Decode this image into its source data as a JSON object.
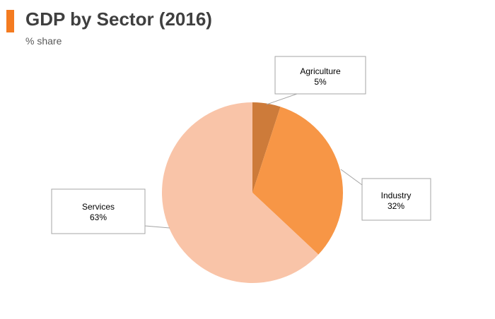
{
  "header": {
    "title": "GDP by Sector (2016)",
    "subtitle": "% share"
  },
  "colors": {
    "accent": "#f47b20",
    "agriculture": "#cd7b3a",
    "industry": "#f79646",
    "services": "#f9c4a8"
  },
  "chart_data": {
    "type": "pie",
    "title": "GDP by Sector (2016)",
    "subtitle": "% share",
    "unit": "%",
    "start_angle_deg": 0,
    "direction": "clockwise",
    "legend": "none",
    "slices": [
      {
        "name": "Agriculture",
        "label": "5%",
        "value": 5,
        "color": "#cd7b3a"
      },
      {
        "name": "Industry",
        "label": "32%",
        "value": 32,
        "color": "#f79646"
      },
      {
        "name": "Services",
        "label": "63%",
        "value": 63,
        "color": "#f9c4a8"
      }
    ]
  }
}
